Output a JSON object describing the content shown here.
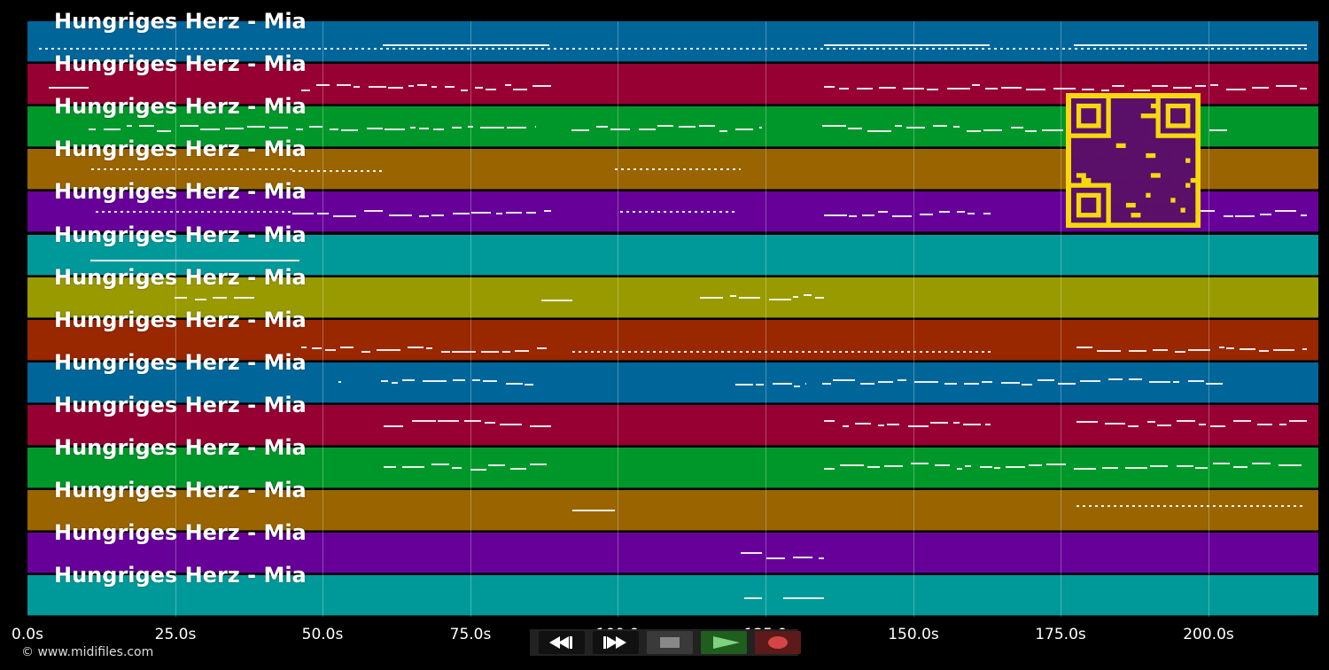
{
  "lanes": [
    {
      "label": "Hungriges Herz - Mia",
      "color": "#00669a"
    },
    {
      "label": "Hungriges Herz - Mia",
      "color": "#970033"
    },
    {
      "label": "Hungriges Herz - Mia",
      "color": "#00972a"
    },
    {
      "label": "Hungriges Herz - Mia",
      "color": "#9a6400"
    },
    {
      "label": "Hungriges Herz - Mia",
      "color": "#660099"
    },
    {
      "label": "Hungriges Herz - Mia",
      "color": "#00999a"
    },
    {
      "label": "Hungriges Herz - Mia",
      "color": "#999a00"
    },
    {
      "label": "Hungriges Herz - Mia",
      "color": "#992700"
    },
    {
      "label": "Hungriges Herz - Mia",
      "color": "#00669a"
    },
    {
      "label": "Hungriges Herz - Mia",
      "color": "#970033"
    },
    {
      "label": "Hungriges Herz - Mia",
      "color": "#00972a"
    },
    {
      "label": "Hungriges Herz - Mia",
      "color": "#9a6400"
    },
    {
      "label": "Hungriges Herz - Mia",
      "color": "#660099"
    },
    {
      "label": "Hungriges Herz - Mia",
      "color": "#00999a"
    }
  ],
  "timeline": {
    "ticks": [
      "0.0s",
      "25.0s",
      "50.0s",
      "75.0s",
      "100.0",
      "125.0",
      "150.0s",
      "175.0s",
      "200.0s"
    ]
  },
  "copyright": "© www.midifiles.com",
  "controls": {
    "rewind_icon": "rewind-icon",
    "forward_icon": "fast-forward-icon",
    "stop_icon": "stop-icon",
    "play_icon": "play-icon",
    "record_icon": "record-icon",
    "stop_color": "#888888",
    "play_color": "#7fd37f",
    "record_color": "#d64545"
  },
  "qr": {
    "icon": "qr-code-icon",
    "fg": "#5a0f68",
    "bg": "#f6d80c"
  }
}
